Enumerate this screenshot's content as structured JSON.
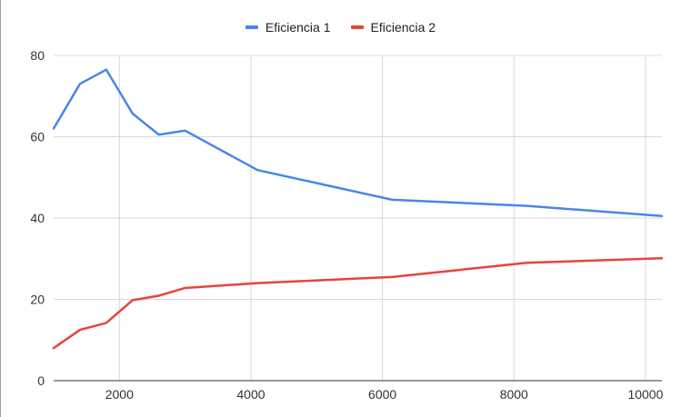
{
  "chart_data": {
    "type": "line",
    "x": [
      1000,
      1400,
      1800,
      2200,
      2600,
      3000,
      4100,
      6150,
      8200,
      10250
    ],
    "series": [
      {
        "name": "Eficiencia 1",
        "color": "#4a86e8",
        "values": [
          62.0,
          73.0,
          76.5,
          65.7,
          60.5,
          61.5,
          51.8,
          44.5,
          43.0,
          40.5
        ]
      },
      {
        "name": "Eficiencia 2",
        "color": "#e5453c",
        "values": [
          8.0,
          12.5,
          14.2,
          19.8,
          20.9,
          22.8,
          24.0,
          25.5,
          29.0,
          30.1
        ]
      }
    ],
    "xlim": [
      1000,
      10250
    ],
    "ylim": [
      0,
      80
    ],
    "xticks": [
      2000,
      4000,
      6000,
      8000,
      10000
    ],
    "yticks": [
      0,
      20,
      40,
      60,
      80
    ],
    "xtick_labels": [
      "2000",
      "4000",
      "6000",
      "8000",
      "10000"
    ],
    "ytick_labels": [
      "0",
      "20",
      "40",
      "60",
      "80"
    ],
    "title": "",
    "xlabel": "",
    "ylabel": "",
    "grid": true,
    "legend_position": "top-center",
    "colors": {
      "grid": "#d9d9d9",
      "axis": "#333333"
    }
  }
}
